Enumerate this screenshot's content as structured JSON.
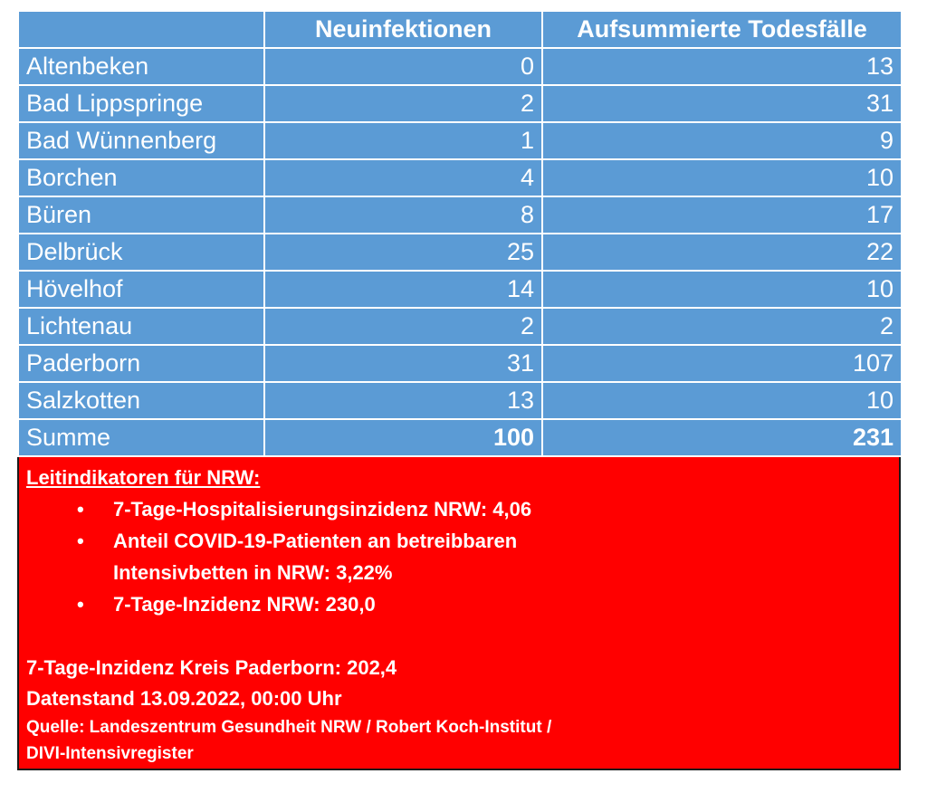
{
  "table": {
    "headers": [
      "",
      "Neuinfektionen",
      "Aufsummierte Todesfälle"
    ],
    "rows": [
      {
        "name": "Altenbeken",
        "neu": "0",
        "tote": "13"
      },
      {
        "name": "Bad Lippspringe",
        "neu": "2",
        "tote": "31"
      },
      {
        "name": "Bad Wünnenberg",
        "neu": "1",
        "tote": "9"
      },
      {
        "name": "Borchen",
        "neu": "4",
        "tote": "10"
      },
      {
        "name": "Büren",
        "neu": "8",
        "tote": "17"
      },
      {
        "name": "Delbrück",
        "neu": "25",
        "tote": "22"
      },
      {
        "name": "Hövelhof",
        "neu": "14",
        "tote": "10"
      },
      {
        "name": "Lichtenau",
        "neu": "2",
        "tote": "2"
      },
      {
        "name": "Paderborn",
        "neu": "31",
        "tote": "107"
      },
      {
        "name": "Salzkotten",
        "neu": "13",
        "tote": "10"
      }
    ],
    "sum": {
      "name": "Summe",
      "neu": "100",
      "tote": "231"
    }
  },
  "info": {
    "heading": "Leitindikatoren für NRW:",
    "bullets": [
      "7-Tage-Hospitalisierungsinzidenz NRW: 4,06",
      "Anteil COVID-19-Patienten an betreibbaren",
      "Intensivbetten in NRW: 3,22%",
      "7-Tage-Inzidenz NRW: 230,0"
    ],
    "bullet_glyph": "•",
    "kreis_inzidenz": "7-Tage-Inzidenz Kreis Paderborn: 202,4",
    "datenstand": "Datenstand 13.09.2022, 00:00 Uhr",
    "quelle_1": "Quelle: Landeszentrum Gesundheit NRW / Robert Koch-Institut /",
    "quelle_2": "DIVI-Intensivregister"
  },
  "colors": {
    "table_bg": "#5b9bd5",
    "info_bg": "#ff0000",
    "text": "#ffffff"
  }
}
